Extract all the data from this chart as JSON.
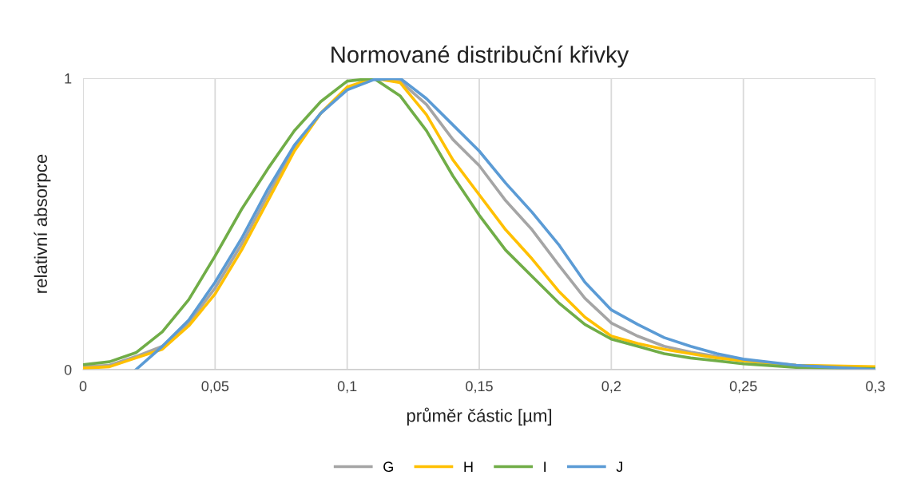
{
  "chart_data": {
    "type": "line",
    "title": "Normované distribuční křivky",
    "xlabel": "průměr částic [µm]",
    "ylabel": "relativní absorpce",
    "x": [
      0,
      0.01,
      0.02,
      0.03,
      0.04,
      0.05,
      0.06,
      0.07,
      0.08,
      0.09,
      0.1,
      0.11,
      0.12,
      0.13,
      0.14,
      0.15,
      0.16,
      0.17,
      0.18,
      0.19,
      0.2,
      0.21,
      0.22,
      0.23,
      0.24,
      0.25,
      0.27,
      0.3
    ],
    "series": [
      {
        "name": "G",
        "color": "#a5a5a5",
        "values": [
          0.01,
          0.015,
          0.045,
          0.08,
          0.16,
          0.28,
          0.43,
          0.6,
          0.76,
          0.88,
          0.965,
          1.0,
          0.99,
          0.91,
          0.79,
          0.7,
          0.58,
          0.48,
          0.36,
          0.245,
          0.16,
          0.115,
          0.08,
          0.06,
          0.045,
          0.03,
          0.015,
          0.005
        ]
      },
      {
        "name": "H",
        "color": "#ffc000",
        "values": [
          0.005,
          0.01,
          0.04,
          0.07,
          0.15,
          0.26,
          0.41,
          0.58,
          0.75,
          0.88,
          0.97,
          1.0,
          0.985,
          0.875,
          0.72,
          0.6,
          0.48,
          0.38,
          0.27,
          0.18,
          0.115,
          0.09,
          0.07,
          0.055,
          0.04,
          0.03,
          0.015,
          0.01
        ]
      },
      {
        "name": "I",
        "color": "#70ad47",
        "values": [
          0.017,
          0.027,
          0.058,
          0.13,
          0.24,
          0.39,
          0.55,
          0.69,
          0.82,
          0.92,
          0.99,
          1.0,
          0.94,
          0.82,
          0.665,
          0.53,
          0.41,
          0.32,
          0.23,
          0.155,
          0.105,
          0.08,
          0.055,
          0.04,
          0.03,
          0.02,
          0.008,
          0.003
        ]
      },
      {
        "name": "J",
        "color": "#5b9bd5",
        "values": [
          null,
          null,
          0.0,
          0.08,
          0.17,
          0.3,
          0.45,
          0.62,
          0.77,
          0.88,
          0.96,
          0.995,
          1.0,
          0.93,
          0.84,
          0.75,
          0.64,
          0.54,
          0.43,
          0.3,
          0.205,
          0.155,
          0.11,
          0.08,
          0.055,
          0.036,
          0.015,
          0.0
        ]
      }
    ],
    "xlim": [
      0,
      0.3
    ],
    "xticks": [
      {
        "value": 0,
        "label": "0"
      },
      {
        "value": 0.05,
        "label": "0,05"
      },
      {
        "value": 0.1,
        "label": "0,1"
      },
      {
        "value": 0.15,
        "label": "0,15"
      },
      {
        "value": 0.2,
        "label": "0,2"
      },
      {
        "value": 0.25,
        "label": "0,25"
      },
      {
        "value": 0.3,
        "label": "0,3"
      }
    ],
    "ylim": [
      0,
      1
    ],
    "yticks": [
      0,
      1
    ],
    "grid": true,
    "legend": "bottom",
    "marker": "none",
    "line_style": "solid"
  }
}
